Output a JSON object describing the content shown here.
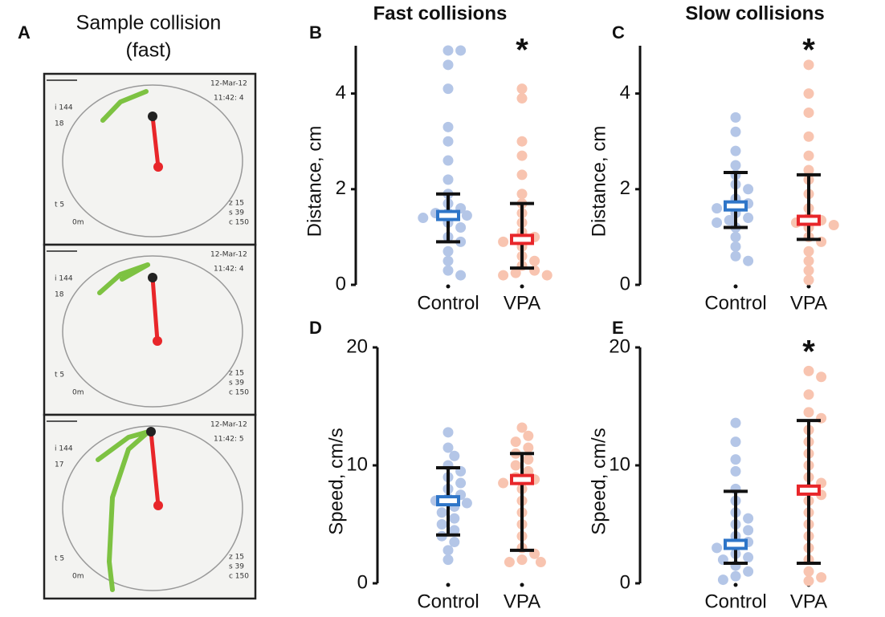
{
  "panel_a": {
    "letter": "A",
    "title": "Sample collision",
    "subtitle": "(fast)",
    "frames": [
      {
        "date": "12-Mar-12",
        "time": "11:42: 4",
        "i": "i 144",
        "n": "18",
        "t": "t 5",
        "m": "0m",
        "z": "z 15",
        "s": "s 39",
        "c": "c 150"
      },
      {
        "date": "12-Mar-12",
        "time": "11:42: 4",
        "i": "i 144",
        "n": "18",
        "t": "t 5",
        "m": "0m",
        "z": "z 15",
        "s": "s 39",
        "c": "c 150"
      },
      {
        "date": "12-Mar-12",
        "time": "11:42: 5",
        "i": "i 144",
        "n": "17",
        "t": "t 5",
        "m": "0m",
        "z": "z 15",
        "s": "s 39",
        "c": "c 150"
      }
    ]
  },
  "chart_data": [
    {
      "type": "swarm",
      "panel": "B",
      "title": "Fast collisions",
      "ylabel": "Distance, cm",
      "categories": [
        "Control",
        "VPA"
      ],
      "ylim": [
        0,
        5
      ],
      "yticks": [
        0,
        2,
        4
      ],
      "groups": [
        {
          "color": "#b4c6e7",
          "box_color": "#2e75c8",
          "median": 1.45,
          "lower": 0.9,
          "upper": 1.9,
          "values": [
            4.9,
            4.9,
            4.6,
            4.1,
            3.3,
            3.0,
            2.6,
            2.2,
            1.9,
            1.7,
            1.6,
            1.5,
            1.5,
            1.45,
            1.4,
            1.3,
            1.2,
            1.0,
            0.9,
            0.7,
            0.5,
            0.3,
            0.2
          ]
        },
        {
          "color": "#f8c4b0",
          "box_color": "#e8262a",
          "median": 0.95,
          "lower": 0.35,
          "upper": 1.7,
          "values": [
            4.1,
            3.9,
            3.0,
            2.7,
            2.3,
            1.9,
            1.7,
            1.5,
            1.3,
            1.1,
            1.0,
            0.95,
            0.9,
            0.8,
            0.6,
            0.5,
            0.4,
            0.3,
            0.25,
            0.2,
            0.2
          ]
        }
      ],
      "annotations": [
        {
          "text": "*",
          "category": "VPA"
        }
      ]
    },
    {
      "type": "swarm",
      "panel": "C",
      "title": "Slow collisions",
      "ylabel": "Distance, cm",
      "categories": [
        "Control",
        "VPA"
      ],
      "ylim": [
        0,
        5
      ],
      "yticks": [
        0,
        2,
        4
      ],
      "groups": [
        {
          "color": "#b4c6e7",
          "box_color": "#2e75c8",
          "median": 1.65,
          "lower": 1.2,
          "upper": 2.35,
          "values": [
            3.5,
            3.2,
            2.8,
            2.5,
            2.3,
            2.1,
            2.0,
            1.8,
            1.7,
            1.65,
            1.6,
            1.5,
            1.4,
            1.35,
            1.3,
            1.2,
            1.0,
            0.8,
            0.6,
            0.5
          ]
        },
        {
          "color": "#f8c4b0",
          "box_color": "#e8262a",
          "median": 1.35,
          "lower": 0.95,
          "upper": 2.3,
          "values": [
            4.6,
            4.0,
            3.6,
            3.1,
            2.7,
            2.4,
            2.2,
            1.9,
            1.6,
            1.4,
            1.35,
            1.3,
            1.25,
            1.2,
            1.0,
            0.9,
            0.7,
            0.5,
            0.3,
            0.1
          ]
        }
      ],
      "annotations": [
        {
          "text": "*",
          "category": "VPA"
        }
      ]
    },
    {
      "type": "swarm",
      "panel": "D",
      "ylabel": "Speed, cm/s",
      "categories": [
        "Control",
        "VPA"
      ],
      "ylim": [
        0,
        20
      ],
      "yticks": [
        0,
        10,
        20
      ],
      "groups": [
        {
          "color": "#b4c6e7",
          "box_color": "#2e75c8",
          "median": 7,
          "lower": 4.1,
          "upper": 9.8,
          "values": [
            12.8,
            11.5,
            10.8,
            10,
            9.5,
            9,
            8.5,
            8,
            7.5,
            7.2,
            7,
            6.8,
            6.5,
            6,
            5.5,
            5,
            4.5,
            4,
            3.5,
            2.8,
            2.0
          ]
        },
        {
          "color": "#f8c4b0",
          "box_color": "#e8262a",
          "median": 8.8,
          "lower": 2.8,
          "upper": 11,
          "values": [
            13.2,
            12.5,
            12,
            11.5,
            11,
            10.5,
            10,
            9.5,
            9,
            8.8,
            8.5,
            8,
            7,
            6,
            5,
            4,
            3,
            2.5,
            2,
            1.8,
            1.8
          ]
        }
      ],
      "annotations": []
    },
    {
      "type": "swarm",
      "panel": "E",
      "ylabel": "Speed, cm/s",
      "categories": [
        "Control",
        "VPA"
      ],
      "ylim": [
        0,
        20
      ],
      "yticks": [
        0,
        10,
        20
      ],
      "groups": [
        {
          "color": "#b4c6e7",
          "box_color": "#2e75c8",
          "median": 3.3,
          "lower": 1.7,
          "upper": 7.8,
          "values": [
            13.6,
            12,
            10.5,
            9.5,
            8,
            7,
            6,
            5.5,
            5,
            4.5,
            4,
            3.5,
            3.3,
            3,
            2.5,
            2.2,
            2,
            1.5,
            1,
            0.6,
            0.3
          ]
        },
        {
          "color": "#f8c4b0",
          "box_color": "#e8262a",
          "median": 7.9,
          "lower": 1.7,
          "upper": 13.8,
          "values": [
            18,
            17.5,
            16,
            14.5,
            14,
            13,
            12,
            11,
            10,
            9,
            8.5,
            8,
            7.5,
            7,
            6,
            5,
            4,
            3,
            2,
            1,
            0.5,
            0.2
          ]
        }
      ],
      "annotations": [
        {
          "text": "*",
          "category": "VPA"
        }
      ]
    }
  ]
}
